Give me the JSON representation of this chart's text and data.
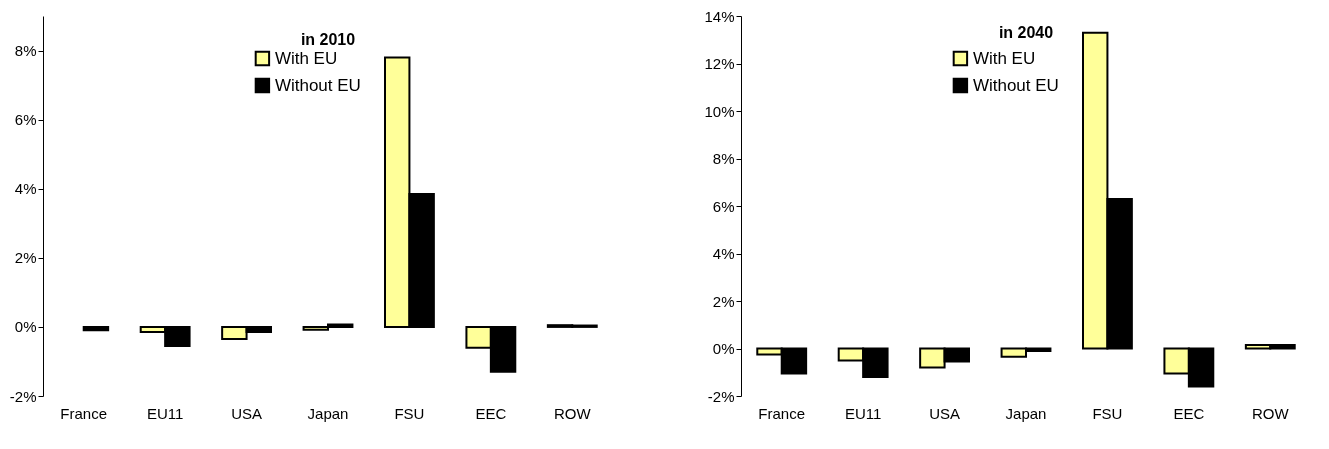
{
  "chart_data": [
    {
      "type": "bar",
      "title": "in 2010",
      "categories": [
        "France",
        "EU11",
        "USA",
        "Japan",
        "FSU",
        "EEC",
        "ROW"
      ],
      "series": [
        {
          "name": "With EU",
          "color": "#ffff99",
          "values": [
            null,
            -0.15,
            -0.35,
            -0.08,
            7.8,
            -0.6,
            0.05
          ]
        },
        {
          "name": "Without EU",
          "color": "#000000",
          "values": [
            -0.1,
            -0.55,
            -0.15,
            0.07,
            3.85,
            -1.3,
            0.04
          ]
        }
      ],
      "ylim": [
        -2,
        9
      ],
      "yticks": [
        {
          "value": -2,
          "label": "-2%"
        },
        {
          "value": 0,
          "label": "0%"
        },
        {
          "value": 2,
          "label": "2%"
        },
        {
          "value": 4,
          "label": "4%"
        },
        {
          "value": 6,
          "label": "6%"
        },
        {
          "value": 8,
          "label": "8%"
        }
      ],
      "legend": "top",
      "grid": false
    },
    {
      "type": "bar",
      "title": "in 2040",
      "categories": [
        "France",
        "EU11",
        "USA",
        "Japan",
        "FSU",
        "EEC",
        "ROW"
      ],
      "series": [
        {
          "name": "With EU",
          "color": "#ffff99",
          "values": [
            -0.25,
            -0.5,
            -0.8,
            -0.35,
            13.3,
            -1.05,
            0.15
          ]
        },
        {
          "name": "Without EU",
          "color": "#000000",
          "values": [
            -1.05,
            -1.2,
            -0.55,
            -0.1,
            6.3,
            -1.6,
            0.15
          ]
        }
      ],
      "ylim": [
        -2,
        14
      ],
      "yticks": [
        {
          "value": -2,
          "label": "-2%"
        },
        {
          "value": 0,
          "label": "0%"
        },
        {
          "value": 2,
          "label": "2%"
        },
        {
          "value": 4,
          "label": "4%"
        },
        {
          "value": 6,
          "label": "6%"
        },
        {
          "value": 8,
          "label": "8%"
        },
        {
          "value": 10,
          "label": "10%"
        },
        {
          "value": 12,
          "label": "12%"
        },
        {
          "value": 14,
          "label": "14%"
        }
      ],
      "legend": "top",
      "grid": false
    }
  ]
}
